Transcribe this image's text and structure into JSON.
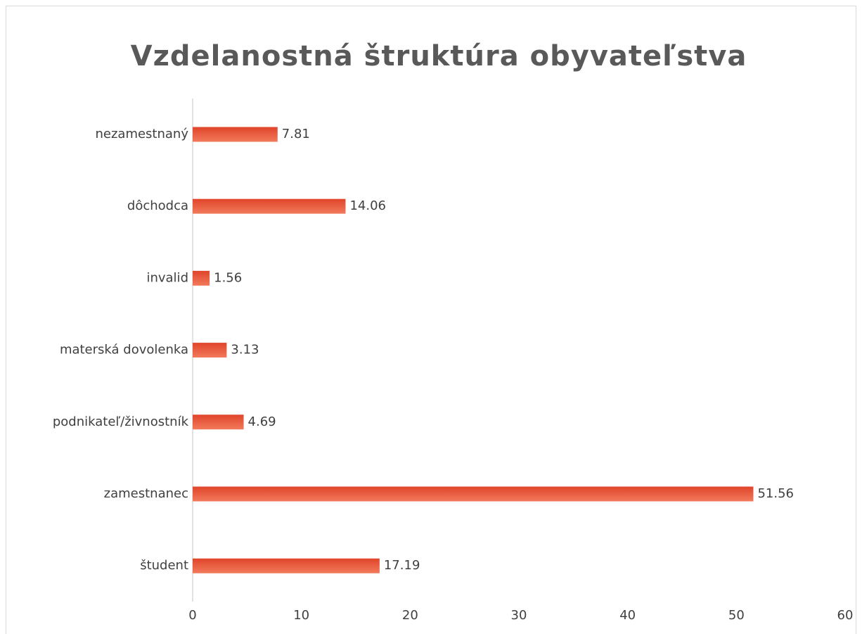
{
  "chart_data": {
    "type": "bar",
    "orientation": "horizontal",
    "title": "Vzdelanostná štruktúra obyvateľstva",
    "categories": [
      "nezamestnaný",
      "dôchodca",
      "invalid",
      "materská dovolenka",
      "podnikateľ/živnostník",
      "zamestnanec",
      "študent"
    ],
    "values": [
      7.81,
      14.06,
      1.56,
      3.13,
      4.69,
      51.56,
      17.19
    ],
    "color": "#e8553a",
    "xlim": [
      0,
      60
    ],
    "xticks": [
      0,
      10,
      20,
      30,
      40,
      50,
      60
    ],
    "grid": false
  }
}
